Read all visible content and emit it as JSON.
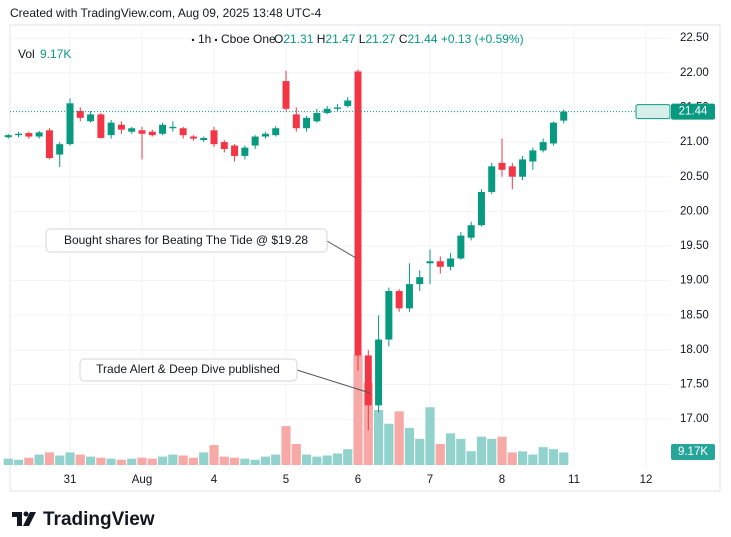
{
  "header": "Created with TradingView.com, Aug 09, 2025 13:48 UTC-4",
  "legend": {
    "interval": "1h",
    "source": "Cboe One",
    "items": [
      {
        "key": "O",
        "value": 21.31
      },
      {
        "key": "H",
        "value": 21.47
      },
      {
        "key": "L",
        "value": 21.27
      },
      {
        "key": "C",
        "value": 21.44
      }
    ],
    "change": "+0.13 (+0.59%)"
  },
  "watermark": "TradingView",
  "chart_data": {
    "type": "candlestick",
    "volume_title": "Vol",
    "volume_value_label": "9.17K",
    "up_color": "#089981",
    "down_color": "#f23645",
    "volume_up_color": "#92d2cc",
    "volume_down_color": "#f7a9a7",
    "grid": true,
    "annotations": [
      {
        "text": "Bought shares for Beating The Tide @ $19.28"
      },
      {
        "text": "Trade Alert & Deep Dive published"
      }
    ],
    "ylim": [
      16.31,
      22.69
    ],
    "yticks": [
      {
        "value": 17,
        "label": "17.00"
      },
      {
        "value": 17.5,
        "label": "17.50"
      },
      {
        "value": 18,
        "label": "18.00"
      },
      {
        "value": 18.5,
        "label": "18.50"
      },
      {
        "value": 19,
        "label": "19.00"
      },
      {
        "value": 19.5,
        "label": "19.50"
      },
      {
        "value": 20,
        "label": "20.00"
      },
      {
        "value": 20.5,
        "label": "20.50"
      },
      {
        "value": 21,
        "label": "21.00"
      },
      {
        "value": 21.5,
        "label": "21.50"
      },
      {
        "value": 22,
        "label": "22.00"
      },
      {
        "value": 22.5,
        "label": "22.50"
      }
    ],
    "categories": [
      null,
      null,
      null,
      null,
      null,
      null,
      "31",
      null,
      null,
      null,
      null,
      null,
      null,
      "Aug",
      null,
      null,
      null,
      null,
      null,
      null,
      "4",
      null,
      null,
      null,
      null,
      null,
      null,
      "5",
      null,
      null,
      null,
      null,
      null,
      null,
      "6",
      null,
      null,
      null,
      null,
      null,
      null,
      "7",
      null,
      null,
      null,
      null,
      null,
      null,
      "8",
      null,
      null,
      null,
      null,
      null,
      null,
      "11",
      null,
      null,
      null,
      null,
      null,
      null,
      "12"
    ],
    "open": [
      21.07,
      21.1,
      21.13,
      21.08,
      21.17,
      20.82,
      20.97,
      21.45,
      21.3,
      21.4,
      21.1,
      21.25,
      21.15,
      21.17,
      21.15,
      21.12,
      21.2,
      21.2,
      21.08,
      21.03,
      21.17,
      21.0,
      20.95,
      20.8,
      20.95,
      21.08,
      21.1,
      21.88,
      21.4,
      21.2,
      21.3,
      21.42,
      21.48,
      21.52,
      22.02,
      17.92,
      17.2,
      18.15,
      18.85,
      18.6,
      18.95,
      19.25,
      19.28,
      19.2,
      19.32,
      19.62,
      19.8,
      20.28,
      20.7,
      20.65,
      20.5,
      20.72,
      20.88,
      20.98,
      21.31,
      null,
      null,
      null,
      null,
      null,
      null,
      null,
      null
    ],
    "high": [
      21.12,
      21.15,
      21.15,
      21.16,
      21.2,
      21.0,
      21.63,
      21.5,
      21.45,
      21.42,
      21.32,
      21.3,
      21.22,
      21.22,
      21.18,
      21.28,
      21.3,
      21.22,
      21.1,
      21.08,
      21.22,
      21.03,
      20.97,
      20.95,
      21.1,
      21.15,
      21.23,
      22.03,
      21.5,
      21.38,
      21.48,
      21.52,
      21.55,
      21.65,
      22.05,
      18.0,
      18.5,
      18.9,
      18.88,
      19.25,
      19.15,
      19.45,
      19.35,
      19.4,
      19.7,
      19.85,
      20.32,
      20.7,
      21.05,
      20.7,
      20.8,
      20.92,
      21.05,
      21.3,
      21.47,
      null,
      null,
      null,
      null,
      null,
      null,
      null,
      null
    ],
    "low": [
      21.05,
      21.07,
      21.05,
      21.05,
      20.75,
      20.64,
      20.95,
      21.3,
      21.28,
      21.05,
      21.05,
      21.12,
      21.12,
      20.75,
      21.08,
      21.1,
      21.15,
      21.05,
      21.02,
      21.0,
      20.93,
      20.85,
      20.72,
      20.75,
      20.9,
      21.05,
      21.08,
      21.45,
      21.15,
      21.15,
      21.28,
      21.4,
      21.45,
      21.5,
      17.7,
      16.84,
      17.1,
      18.05,
      18.55,
      18.55,
      18.85,
      18.95,
      19.1,
      19.15,
      19.3,
      19.58,
      19.78,
      20.25,
      20.5,
      20.32,
      20.45,
      20.6,
      20.85,
      20.95,
      21.27,
      null,
      null,
      null,
      null,
      null,
      null,
      null,
      null
    ],
    "close": [
      21.1,
      21.12,
      21.08,
      21.14,
      20.77,
      20.97,
      21.56,
      21.35,
      21.4,
      21.06,
      21.28,
      21.18,
      21.2,
      21.12,
      21.1,
      21.25,
      21.22,
      21.1,
      21.05,
      21.06,
      20.97,
      20.9,
      20.8,
      20.92,
      21.08,
      21.12,
      21.2,
      21.48,
      21.2,
      21.35,
      21.42,
      21.48,
      21.5,
      21.6,
      17.92,
      17.2,
      18.15,
      18.85,
      18.6,
      18.95,
      19.05,
      19.28,
      19.2,
      19.32,
      19.65,
      19.8,
      20.28,
      20.65,
      20.6,
      20.5,
      20.75,
      20.88,
      21.0,
      21.28,
      21.44,
      null,
      null,
      null,
      null,
      null,
      null,
      null,
      null
    ],
    "volume": [
      4600,
      3800,
      5300,
      7600,
      9200,
      6900,
      9200,
      7600,
      6100,
      5300,
      4600,
      3800,
      4600,
      5300,
      4600,
      6100,
      7600,
      6900,
      5300,
      9200,
      14500,
      6100,
      5300,
      4600,
      3800,
      6100,
      7600,
      28300,
      15300,
      7600,
      6100,
      6900,
      8400,
      11500,
      80000,
      60000,
      40000,
      30000,
      39000,
      27000,
      19000,
      42000,
      15300,
      23000,
      19000,
      10000,
      20600,
      19000,
      20600,
      9200,
      9900,
      7600,
      13000,
      11500,
      9170,
      null,
      null,
      null,
      null,
      null,
      null,
      null,
      null
    ]
  }
}
